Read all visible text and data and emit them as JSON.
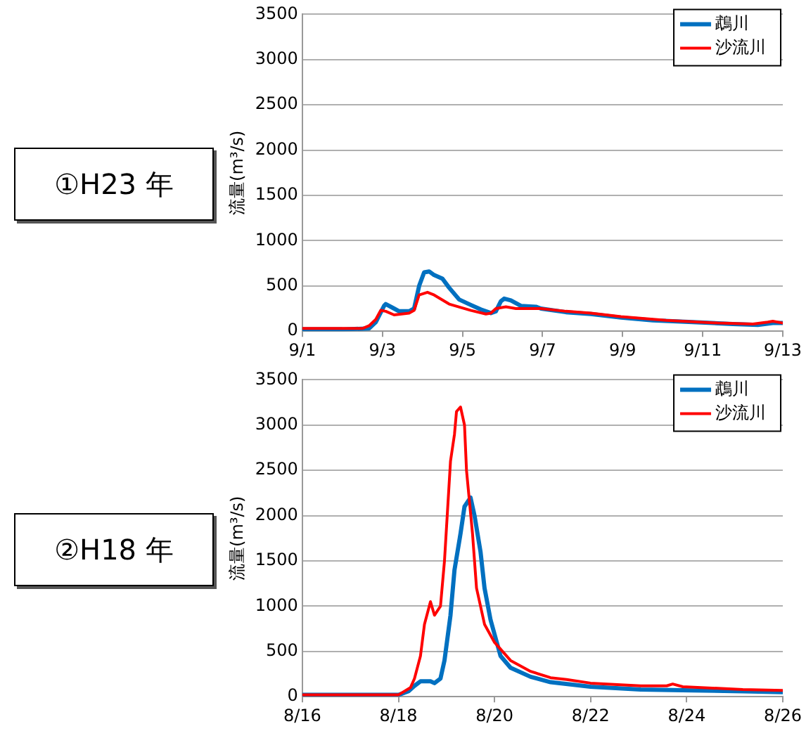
{
  "chart_data": [
    {
      "type": "line",
      "title": "①H23 年",
      "ylabel": "流量(m³/s)",
      "xlim": [
        "--09-01",
        "--09-13"
      ],
      "ylim": [
        0,
        3500
      ],
      "xticks": [
        {
          "value": "--09-01",
          "label": "9/1"
        },
        {
          "value": "--09-03",
          "label": "9/3"
        },
        {
          "value": "--09-05",
          "label": "9/5"
        },
        {
          "value": "--09-07",
          "label": "9/7"
        },
        {
          "value": "--09-09",
          "label": "9/9"
        },
        {
          "value": "--09-11",
          "label": "9/11"
        },
        {
          "value": "--09-13",
          "label": "9/13"
        }
      ],
      "yticks": [
        0,
        500,
        1000,
        1500,
        2000,
        2500,
        3000,
        3500
      ],
      "grid": "y",
      "legend": "top right",
      "line_style": "solid",
      "series": [
        {
          "name": "鵡川",
          "color": "#0070c0",
          "x": [
            "--09-01",
            "--09-02",
            "--09-02T16:00",
            "--09-02T20:00",
            "--09-03T01:00",
            "--09-03T02:00",
            "--09-03T07:00",
            "--09-03T10:00",
            "--09-03T16:00",
            "--09-03T19:00",
            "--09-03T22:00",
            "--09-04T01:00",
            "--09-04T04:00",
            "--09-04T07:00",
            "--09-04T12:00",
            "--09-04T16:00",
            "--09-04T22:00",
            "--09-05T05:00",
            "--09-05T11:00",
            "--09-05T17:00",
            "--09-05T20:00",
            "--09-05T23:00",
            "--09-06T01:00",
            "--09-06T05:00",
            "--09-06T11:00",
            "--09-06T20:00",
            "--09-06T23:00",
            "--09-07T14:00",
            "--09-08T05:00",
            "--09-08T23:00",
            "--09-09T18:00",
            "--09-10T18:00",
            "--09-11T18:00",
            "--09-12T09:00",
            "--09-12T18:00",
            "--09-13"
          ],
          "values": [
            20,
            20,
            30,
            100,
            280,
            300,
            250,
            220,
            220,
            250,
            500,
            650,
            660,
            620,
            580,
            480,
            350,
            290,
            240,
            200,
            220,
            330,
            360,
            340,
            280,
            270,
            250,
            210,
            190,
            150,
            120,
            100,
            80,
            70,
            90,
            90
          ]
        },
        {
          "name": "沙流川",
          "color": "#ff0000",
          "x": [
            "--09-01",
            "--09-02T12:00",
            "--09-02T16:00",
            "--09-02T20:00",
            "--09-02T23:00",
            "--09-03T02:00",
            "--09-03T07:00",
            "--09-03T16:00",
            "--09-03T19:00",
            "--09-03T22:00",
            "--09-04T03:00",
            "--09-04T07:00",
            "--09-04T16:00",
            "--09-05T05:00",
            "--09-05T14:00",
            "--09-05T17:00",
            "--09-05T20:00",
            "--09-06T02:00",
            "--09-06T08:00",
            "--09-06T23:00",
            "--09-07T14:00",
            "--09-08T05:00",
            "--09-08T23:00",
            "--09-10T02:00",
            "--09-11T09:00",
            "--09-12T06:00",
            "--09-12T15:00",
            "--09-12T18:00",
            "--09-13"
          ],
          "values": [
            30,
            30,
            60,
            130,
            230,
            220,
            180,
            200,
            230,
            400,
            430,
            400,
            300,
            230,
            190,
            200,
            250,
            270,
            250,
            250,
            220,
            200,
            160,
            120,
            90,
            80,
            100,
            110,
            90
          ]
        }
      ]
    },
    {
      "type": "line",
      "title": "②H18 年",
      "ylabel": "流量(m³/s)",
      "xlim": [
        "--08-16",
        "--08-26"
      ],
      "ylim": [
        0,
        3500
      ],
      "xticks": [
        {
          "value": "--08-16",
          "label": "8/16"
        },
        {
          "value": "--08-18",
          "label": "8/18"
        },
        {
          "value": "--08-20",
          "label": "8/20"
        },
        {
          "value": "--08-22",
          "label": "8/22"
        },
        {
          "value": "--08-24",
          "label": "8/24"
        },
        {
          "value": "--08-26",
          "label": "8/26"
        }
      ],
      "yticks": [
        0,
        500,
        1000,
        1500,
        2000,
        2500,
        3000,
        3500
      ],
      "grid": "y",
      "legend": "top right",
      "line_style": "solid",
      "series": [
        {
          "name": "鵡川",
          "color": "#0070c0",
          "x": [
            "--08-16",
            "--08-16T19:00",
            "--08-17",
            "--08-17T19:00",
            "--08-18",
            "--08-18T05:00",
            "--08-18T08:00",
            "--08-18T11:00",
            "--08-18T16:00",
            "--08-18T18:00",
            "--08-18T21:00",
            "--08-18T23:00",
            "--08-19T02:00",
            "--08-19T04:00",
            "--08-19T07:00",
            "--08-19T09:00",
            "--08-19T12:00",
            "--08-19T14:00",
            "--08-19T17:00",
            "--08-19T19:00",
            "--08-19T22:00",
            "--08-20T03:00",
            "--08-20T08:00",
            "--08-20T18:00",
            "--08-21T04:00",
            "--08-22",
            "--08-23T01:00",
            "--08-24T03:00",
            "--08-25T04:00",
            "--08-26"
          ],
          "values": [
            20,
            20,
            20,
            20,
            20,
            60,
            120,
            170,
            170,
            150,
            200,
            400,
            900,
            1400,
            1800,
            2100,
            2200,
            2000,
            1600,
            1200,
            850,
            450,
            320,
            220,
            160,
            110,
            80,
            70,
            60,
            50
          ]
        },
        {
          "name": "沙流川",
          "color": "#ff0000",
          "x": [
            "--08-16",
            "--08-18",
            "--08-18T06:00",
            "--08-18T08:00",
            "--08-18T11:00",
            "--08-18T13:00",
            "--08-18T16:00",
            "--08-18T18:00",
            "--08-18T21:00",
            "--08-18T23:00",
            "--08-19T02:00",
            "--08-19T04:00",
            "--08-19T05:00",
            "--08-19T07:00",
            "--08-19T09:00",
            "--08-19T10:00",
            "--08-19T13:00",
            "--08-19T15:00",
            "--08-19T19:00",
            "--08-20",
            "--08-20T08:00",
            "--08-20T18:00",
            "--08-21T04:00",
            "--08-21T12:00",
            "--08-22",
            "--08-23T01:00",
            "--08-23T14:00",
            "--08-23T17:00",
            "--08-23T22:00",
            "--08-25T04:00",
            "--08-26"
          ],
          "values": [
            20,
            20,
            100,
            200,
            450,
            800,
            1050,
            900,
            1000,
            1500,
            2600,
            2900,
            3150,
            3200,
            3000,
            2500,
            1800,
            1200,
            800,
            600,
            400,
            280,
            210,
            190,
            150,
            120,
            120,
            140,
            110,
            80,
            70
          ]
        }
      ]
    }
  ]
}
